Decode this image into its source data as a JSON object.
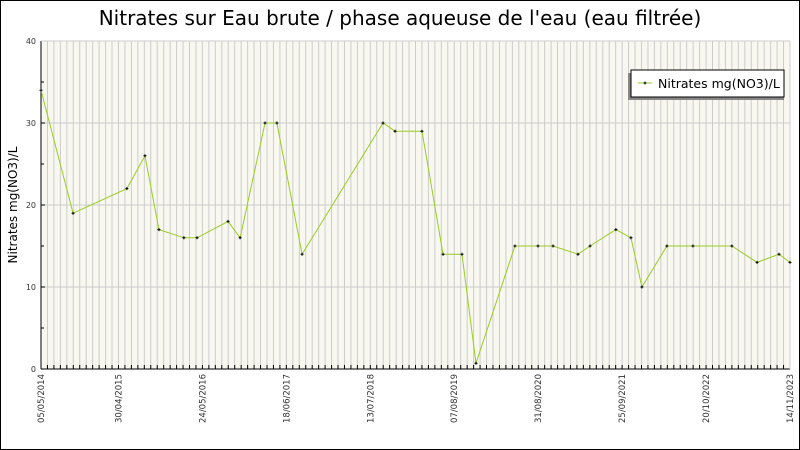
{
  "chart_data": {
    "type": "line",
    "title": "Nitrates sur Eau brute / phase aqueuse de l'eau (eau filtrée)",
    "xlabel": "",
    "ylabel": "Nitrates mg(NO3)/L",
    "ylim": [
      0,
      40
    ],
    "yticks": [
      0,
      10,
      20,
      30,
      40
    ],
    "xlim": [
      "2014-05-05",
      "2023-11-14"
    ],
    "xtick_labels": [
      "05/05/2014",
      "30/04/2015",
      "24/05/2016",
      "18/06/2017",
      "13/07/2018",
      "07/08/2019",
      "31/08/2020",
      "25/09/2021",
      "20/10/2022",
      "14/11/2023"
    ],
    "grid": true,
    "legend_position": "top-right",
    "line_color": "#99cc22",
    "marker_color": "#000000",
    "plot_background": "#f8f8f0",
    "series": [
      {
        "name": "Nitrates mg(NO3)/L",
        "x": [
          "2014-05-05",
          "2014-10-01",
          "2015-06-08",
          "2015-08-31",
          "2015-11-04",
          "2016-02-28",
          "2016-04-29",
          "2016-09-20",
          "2016-11-15",
          "2017-03-11",
          "2017-05-05",
          "2017-08-30",
          "2018-09-10",
          "2018-11-05",
          "2019-03-10",
          "2019-06-16",
          "2019-09-12",
          "2019-11-16",
          "2020-05-15",
          "2020-08-30",
          "2020-11-08",
          "2021-03-04",
          "2021-04-29",
          "2021-08-27",
          "2021-11-05",
          "2021-12-26",
          "2022-04-21",
          "2022-08-20",
          "2023-02-17",
          "2023-06-14",
          "2023-09-24",
          "2023-11-14"
        ],
        "y": [
          34,
          19,
          22,
          26,
          17,
          16,
          16,
          18,
          16,
          30,
          30,
          14,
          30,
          29,
          29,
          14,
          14,
          0.7,
          15,
          15,
          15,
          14,
          15,
          17,
          16,
          10,
          15,
          15,
          15,
          13,
          14,
          13
        ]
      }
    ]
  }
}
